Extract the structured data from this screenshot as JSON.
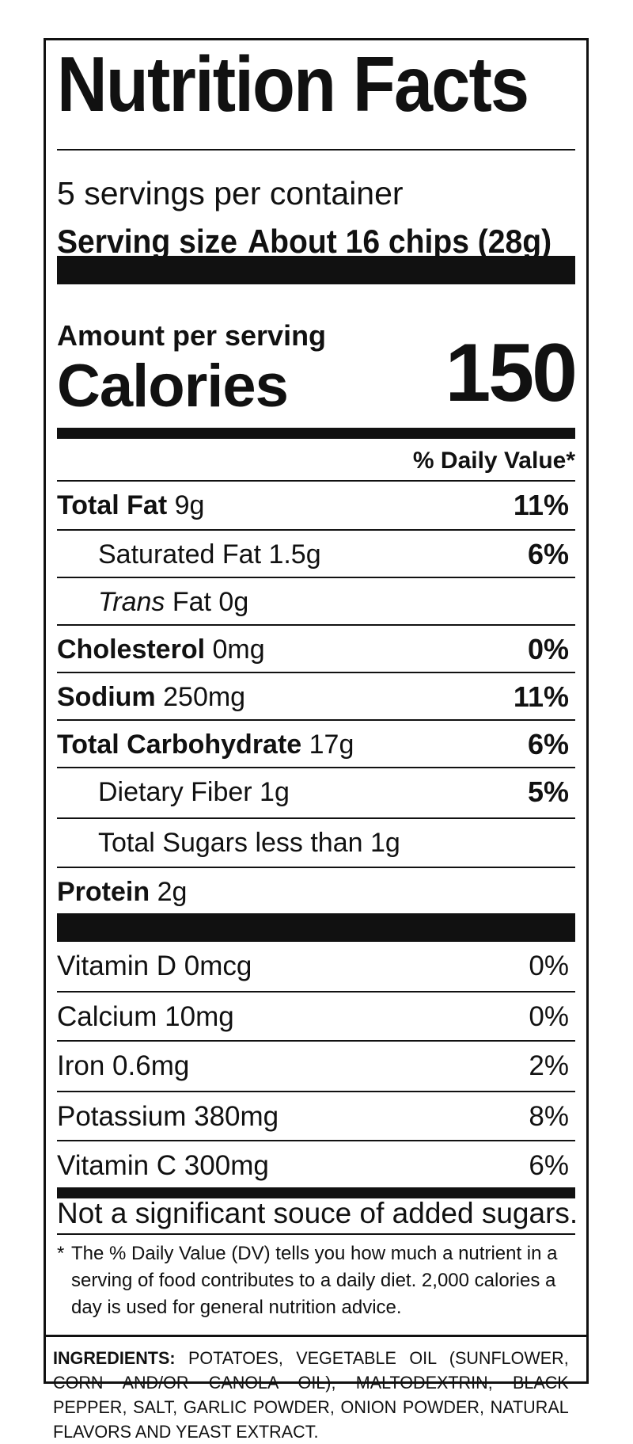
{
  "title": "Nutrition Facts",
  "servings_per_container": "5 servings per container",
  "serving_size_label": "Serving size",
  "serving_size_value": "About 16 chips (28g)",
  "amount_per_serving": "Amount per serving",
  "calories_label": "Calories",
  "calories_value": "150",
  "daily_value_header": "% Daily Value*",
  "nutrients": [
    {
      "name": "Total Fat",
      "amount": "9g",
      "dv": "11%"
    },
    {
      "name": "Saturated Fat 1.5g",
      "dv": "6%"
    },
    {
      "name_italic": "Trans",
      "name_rest": " Fat 0g"
    },
    {
      "name": "Cholesterol",
      "amount": "0mg",
      "dv": "0%"
    },
    {
      "name": "Sodium",
      "amount": "250mg",
      "dv": "11%"
    },
    {
      "name": "Total Carbohydrate",
      "amount": "17g",
      "dv": "6%"
    },
    {
      "name": "Dietary Fiber 1g",
      "dv": "5%"
    },
    {
      "name": "Total Sugars less than 1g"
    },
    {
      "name": "Protein",
      "amount": "2g"
    }
  ],
  "vitamins": [
    {
      "name": "Vitamin D 0mcg",
      "dv": "0%"
    },
    {
      "name": "Calcium 10mg",
      "dv": "0%"
    },
    {
      "name": "Iron 0.6mg",
      "dv": "2%"
    },
    {
      "name": "Potassium 380mg",
      "dv": "8%"
    },
    {
      "name": "Vitamin C 300mg",
      "dv": "6%"
    }
  ],
  "not_significant": "Not a significant souce of added sugars.",
  "footnote_star": "*",
  "footnote": "The % Daily Value (DV) tells you how much a nutrient in a serving of food contributes to a daily diet. 2,000 calories a day is used for general nutrition advice.",
  "ingredients_label": "INGREDIENTS:",
  "ingredients_text": "POTATOES, VEGETABLE OIL (SUNFLOWER, CORN AND/OR CANOLA OIL), MALTODEXTRIN, BLACK PEPPER, SALT, GARLIC POWDER, ONION POWDER, NATURAL FLAVORS AND YEAST EXTRACT."
}
